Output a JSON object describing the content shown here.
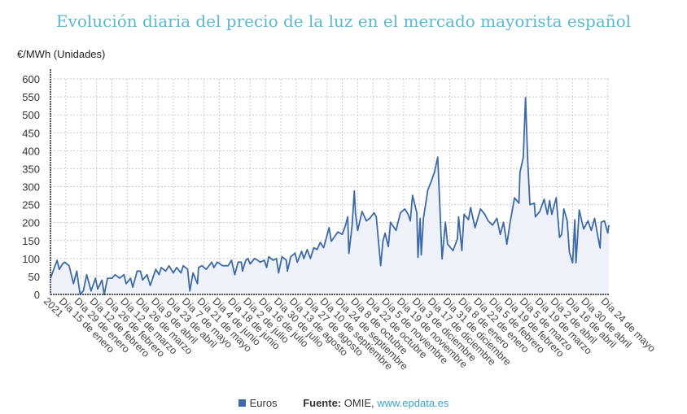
{
  "chart_data": {
    "type": "area",
    "title": "Evolución diaria del precio de la luz en el mercado mayorista español",
    "ylabel": "€/MWh (Unidades)",
    "xlabel": "",
    "ylim": [
      0,
      600
    ],
    "yticks": [
      0,
      50,
      100,
      150,
      200,
      250,
      300,
      350,
      400,
      450,
      500,
      550,
      600
    ],
    "grid": true,
    "legend_position": "bottom",
    "xlim_days": [
      0,
      509
    ],
    "tick_labels": [
      "2021",
      "Día 15 de enero",
      "Día 29 de enero",
      "Día 12 de febrero",
      "Día 26 de febrero",
      "Día 12 de marzo",
      "Día 26 de marzo",
      "Día 9 de abril",
      "Día 23 de abril",
      "Día 7 de mayo",
      "Día 21 de mayo",
      "Día 4 de junio",
      "Día 18 de junio",
      "Día 2 de julio",
      "Día 16 de julio",
      "Día 30 de julio",
      "Día 13 de agosto",
      "Día 27 de agosto",
      "Día 10 de septiembre",
      "Día 24 de septiembre",
      "Día 8 de octubre",
      "Día 22 de octubre",
      "Día 5 de noviembre",
      "Día 19 de noviembre",
      "Día 3 de diciembre",
      "Día 17 de diciembre",
      "Día 31 de diciembre",
      "Día 8 de enero",
      "Día 22 de enero",
      "Día 5 de febrero",
      "Día 19 de febrero",
      "Día 5 de marzo",
      "Día 19 de marzo",
      "Día 2 de abril",
      "Día 16 de abril",
      "Día 30 de abril",
      "Día 24 de mayo"
    ],
    "series": [
      {
        "name": "Euros",
        "color": "#3d6aa6",
        "points": [
          [
            0,
            45
          ],
          [
            6,
            95
          ],
          [
            8,
            70
          ],
          [
            11,
            85
          ],
          [
            13,
            90
          ],
          [
            17,
            80
          ],
          [
            19,
            55
          ],
          [
            21,
            30
          ],
          [
            24,
            65
          ],
          [
            27,
            0
          ],
          [
            30,
            10
          ],
          [
            33,
            55
          ],
          [
            37,
            10
          ],
          [
            41,
            45
          ],
          [
            43,
            15
          ],
          [
            47,
            40
          ],
          [
            49,
            0
          ],
          [
            52,
            45
          ],
          [
            56,
            45
          ],
          [
            59,
            55
          ],
          [
            63,
            45
          ],
          [
            67,
            55
          ],
          [
            69,
            30
          ],
          [
            73,
            45
          ],
          [
            75,
            20
          ],
          [
            79,
            65
          ],
          [
            82,
            65
          ],
          [
            84,
            40
          ],
          [
            88,
            55
          ],
          [
            91,
            25
          ],
          [
            96,
            70
          ],
          [
            99,
            55
          ],
          [
            101,
            75
          ],
          [
            105,
            65
          ],
          [
            108,
            80
          ],
          [
            112,
            60
          ],
          [
            115,
            75
          ],
          [
            119,
            60
          ],
          [
            121,
            80
          ],
          [
            125,
            70
          ],
          [
            127,
            10
          ],
          [
            130,
            60
          ],
          [
            132,
            45
          ],
          [
            134,
            30
          ],
          [
            135,
            75
          ],
          [
            138,
            80
          ],
          [
            142,
            70
          ],
          [
            147,
            90
          ],
          [
            149,
            75
          ],
          [
            152,
            90
          ],
          [
            157,
            80
          ],
          [
            162,
            80
          ],
          [
            165,
            95
          ],
          [
            168,
            55
          ],
          [
            171,
            90
          ],
          [
            174,
            90
          ],
          [
            175,
            65
          ],
          [
            178,
            95
          ],
          [
            180,
            100
          ],
          [
            182,
            85
          ],
          [
            186,
            100
          ],
          [
            189,
            95
          ],
          [
            191,
            90
          ],
          [
            195,
            95
          ],
          [
            197,
            75
          ],
          [
            199,
            105
          ],
          [
            203,
            95
          ],
          [
            206,
            100
          ],
          [
            208,
            60
          ],
          [
            211,
            105
          ],
          [
            215,
            95
          ],
          [
            216,
            65
          ],
          [
            219,
            105
          ],
          [
            223,
            115
          ],
          [
            225,
            90
          ],
          [
            229,
            120
          ],
          [
            231,
            100
          ],
          [
            234,
            125
          ],
          [
            237,
            100
          ],
          [
            240,
            130
          ],
          [
            243,
            125
          ],
          [
            246,
            145
          ],
          [
            249,
            130
          ],
          [
            251,
            152
          ],
          [
            254,
            186
          ],
          [
            256,
            148
          ],
          [
            262,
            174
          ],
          [
            266,
            167
          ],
          [
            269,
            193
          ],
          [
            271,
            216
          ],
          [
            272,
            114
          ],
          [
            275,
            193
          ],
          [
            277,
            288
          ],
          [
            278,
            227
          ],
          [
            280,
            178
          ],
          [
            284,
            231
          ],
          [
            288,
            205
          ],
          [
            291,
            212
          ],
          [
            295,
            227
          ],
          [
            297,
            216
          ],
          [
            301,
            80
          ],
          [
            303,
            148
          ],
          [
            305,
            171
          ],
          [
            308,
            133
          ],
          [
            310,
            201
          ],
          [
            315,
            178
          ],
          [
            319,
            227
          ],
          [
            323,
            238
          ],
          [
            326,
            223
          ],
          [
            328,
            205
          ],
          [
            330,
            276
          ],
          [
            334,
            227
          ],
          [
            335,
            103
          ],
          [
            337,
            212
          ],
          [
            338,
            110
          ],
          [
            340,
            212
          ],
          [
            344,
            291
          ],
          [
            347,
            314
          ],
          [
            350,
            340
          ],
          [
            353,
            382
          ],
          [
            357,
            99
          ],
          [
            360,
            201
          ],
          [
            362,
            140
          ],
          [
            367,
            122
          ],
          [
            371,
            155
          ],
          [
            372,
            216
          ],
          [
            375,
            122
          ],
          [
            377,
            223
          ],
          [
            381,
            208
          ],
          [
            383,
            242
          ],
          [
            387,
            186
          ],
          [
            392,
            238
          ],
          [
            396,
            223
          ],
          [
            399,
            205
          ],
          [
            403,
            193
          ],
          [
            407,
            212
          ],
          [
            410,
            167
          ],
          [
            413,
            201
          ],
          [
            416,
            140
          ],
          [
            419,
            201
          ],
          [
            423,
            269
          ],
          [
            427,
            254
          ],
          [
            428,
            340
          ],
          [
            431,
            382
          ],
          [
            433,
            548
          ],
          [
            435,
            374
          ],
          [
            437,
            250
          ],
          [
            441,
            254
          ],
          [
            442,
            216
          ],
          [
            446,
            231
          ],
          [
            450,
            265
          ],
          [
            453,
            223
          ],
          [
            455,
            261
          ],
          [
            457,
            223
          ],
          [
            461,
            269
          ],
          [
            464,
            159
          ],
          [
            466,
            167
          ],
          [
            468,
            238
          ],
          [
            471,
            205
          ],
          [
            473,
            118
          ],
          [
            476,
            88
          ],
          [
            478,
            208
          ],
          [
            479,
            88
          ],
          [
            482,
            235
          ],
          [
            486,
            182
          ],
          [
            490,
            205
          ],
          [
            493,
            178
          ],
          [
            496,
            212
          ],
          [
            498,
            178
          ],
          [
            501,
            129
          ],
          [
            502,
            201
          ],
          [
            505,
            205
          ],
          [
            508,
            171
          ],
          [
            509,
            193
          ]
        ]
      }
    ]
  },
  "legend": {
    "series_label": "Euros",
    "source_label": "Fuente:",
    "source_text": "OMIE,",
    "source_link": "www.epdata.es"
  }
}
